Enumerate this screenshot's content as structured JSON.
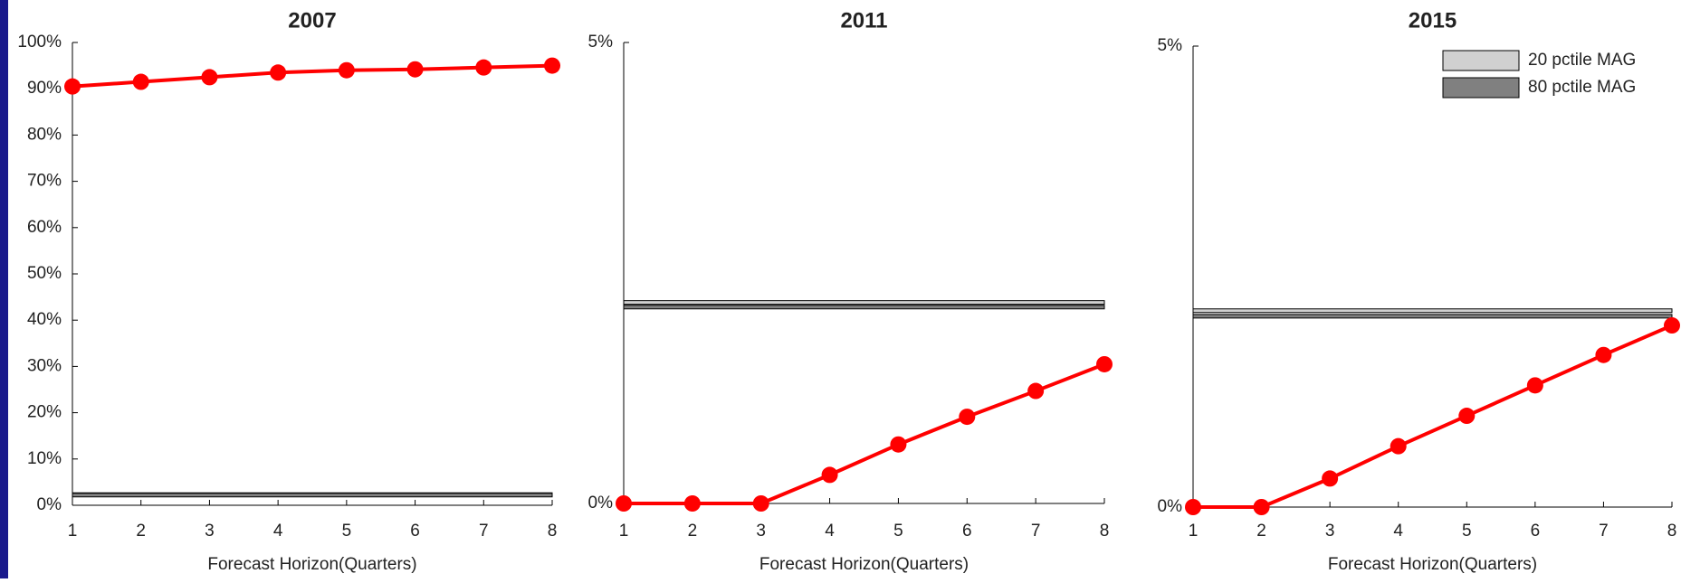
{
  "chart_data": [
    {
      "type": "line",
      "title": "2007",
      "x_label": "Forecast Horizon(Quarters)",
      "x": [
        1,
        2,
        3,
        4,
        5,
        6,
        7,
        8
      ],
      "xlim": [
        1,
        8
      ],
      "xticks": [
        1,
        2,
        3,
        4,
        5,
        6,
        7,
        8
      ],
      "ylim": [
        0,
        100
      ],
      "yticks": [
        {
          "value": 0,
          "label": "0%"
        },
        {
          "value": 10,
          "label": "10%"
        },
        {
          "value": 20,
          "label": "20%"
        },
        {
          "value": 30,
          "label": "30%"
        },
        {
          "value": 40,
          "label": "40%"
        },
        {
          "value": 50,
          "label": "50%"
        },
        {
          "value": 60,
          "label": "60%"
        },
        {
          "value": 70,
          "label": "70%"
        },
        {
          "value": 80,
          "label": "80%"
        },
        {
          "value": 90,
          "label": "90%"
        },
        {
          "value": 100,
          "label": "100%"
        }
      ],
      "series": [
        {
          "color": "#ff0000",
          "values": [
            90.5,
            91.5,
            92.5,
            93.5,
            94,
            94.2,
            94.6,
            95
          ]
        }
      ],
      "bands": [
        {
          "color": "#d0d0d0",
          "value": 2.3
        },
        {
          "color": "#808080",
          "value": 2.2
        }
      ]
    },
    {
      "type": "line",
      "title": "2011",
      "x_label": "Forecast Horizon(Quarters)",
      "x": [
        1,
        2,
        3,
        4,
        5,
        6,
        7,
        8
      ],
      "xlim": [
        1,
        8
      ],
      "xticks": [
        1,
        2,
        3,
        4,
        5,
        6,
        7,
        8
      ],
      "ylim": [
        0,
        5
      ],
      "yticks": [
        {
          "value": 0,
          "label": "0%"
        },
        {
          "value": 5,
          "label": "5%"
        }
      ],
      "series": [
        {
          "color": "#ff0000",
          "values": [
            0,
            0,
            0,
            0.31,
            0.64,
            0.94,
            1.22,
            1.51
          ]
        }
      ],
      "bands": [
        {
          "color": "#d0d0d0",
          "value": 2.18
        },
        {
          "color": "#808080",
          "value": 2.13
        }
      ]
    },
    {
      "type": "line",
      "title": "2015",
      "x_label": "Forecast Horizon(Quarters)",
      "x": [
        1,
        2,
        3,
        4,
        5,
        6,
        7,
        8
      ],
      "xlim": [
        1,
        8
      ],
      "xticks": [
        1,
        2,
        3,
        4,
        5,
        6,
        7,
        8
      ],
      "ylim": [
        0,
        5
      ],
      "yticks": [
        {
          "value": 0,
          "label": "0%"
        },
        {
          "value": 5,
          "label": "5%"
        }
      ],
      "series": [
        {
          "color": "#ff0000",
          "values": [
            0,
            0,
            0.31,
            0.66,
            0.99,
            1.32,
            1.65,
            1.97
          ]
        }
      ],
      "bands": [
        {
          "name": "20 pctile MAG",
          "color": "#d0d0d0",
          "value": 2.13
        },
        {
          "name": "80 pctile MAG",
          "color": "#808080",
          "value": 2.07
        }
      ],
      "legend": "upper right"
    }
  ]
}
